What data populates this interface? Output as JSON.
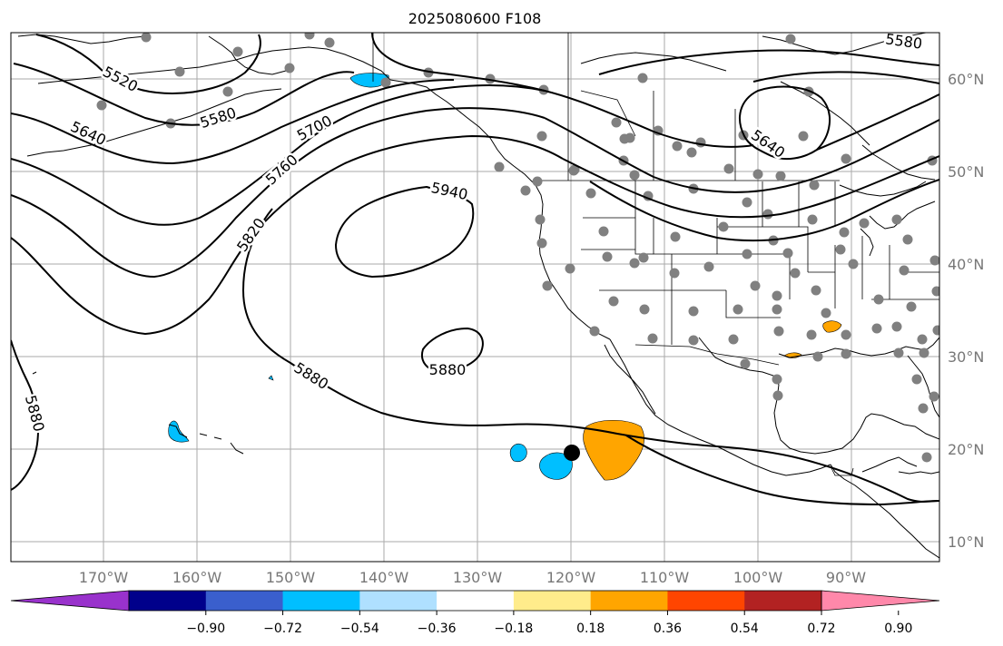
{
  "title": "2025080600 F108",
  "lon_labels": [
    "170°W",
    "160°W",
    "150°W",
    "140°W",
    "130°W",
    "120°W",
    "110°W",
    "100°W",
    "90°W"
  ],
  "lat_labels": [
    "60°N",
    "50°N",
    "40°N",
    "30°N",
    "20°N",
    "10°N"
  ],
  "contour_labels": [
    "5520",
    "5580",
    "5580",
    "5640",
    "5640",
    "5700",
    "5760",
    "5820",
    "5880",
    "5880",
    "5880",
    "5940"
  ],
  "colorbar": {
    "ticks": [
      "−0.90",
      "−0.72",
      "−0.54",
      "−0.36",
      "−0.18",
      "0.18",
      "0.36",
      "0.54",
      "0.72",
      "0.90"
    ],
    "colors": [
      "#9932cc",
      "#00008b",
      "#3a5fcd",
      "#00bfff",
      "#afe0ff",
      "#ffffff",
      "#ffec8b",
      "#ffa500",
      "#ff4500",
      "#b22222",
      "#ff88aa"
    ]
  },
  "anomaly_colors": {
    "negative": "#00bfff",
    "positive": "#ffa500"
  },
  "marker_color": "#000000",
  "station_color": "#808080"
}
